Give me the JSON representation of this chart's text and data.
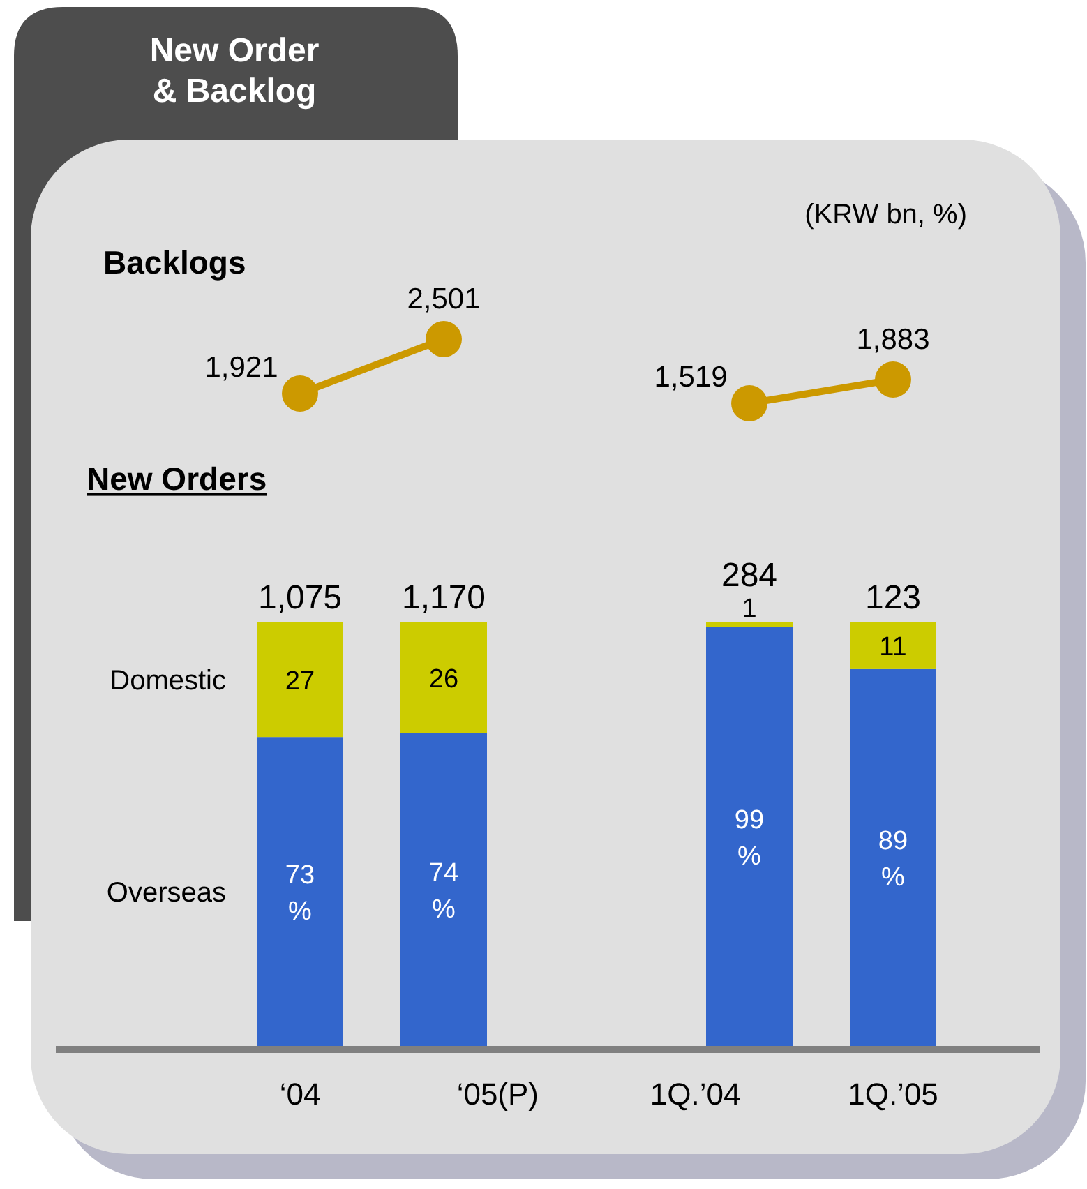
{
  "chart_data": [
    {
      "type": "line",
      "title": "New Order & Backlog",
      "annotations": [
        "Backlogs"
      ],
      "categories": [
        null,
        null
      ],
      "tick_labels": false,
      "marker": "circle",
      "series": [
        {
          "color": "#cc9900",
          "values": [
            1921,
            2501
          ],
          "value_labels": [
            "1,921",
            "2,501"
          ]
        }
      ]
    },
    {
      "type": "line",
      "subtitle": "(KRW bn, %)",
      "categories": [
        null,
        null
      ],
      "tick_labels": false,
      "marker": "circle",
      "series": [
        {
          "color": "#cc9900",
          "values": [
            1519,
            1883
          ],
          "value_labels": [
            "1,519",
            "1,883"
          ]
        }
      ]
    },
    {
      "type": "bar",
      "stacked": true,
      "categories": [
        "‘04",
        "‘05(P)",
        "1Q.’04",
        "1Q.’05"
      ],
      "tick_labels": "x",
      "ylim": [
        0,
        100
      ],
      "annotations": [
        "New Orders",
        "1,075",
        "1,170",
        "284",
        "123"
      ],
      "series": [
        {
          "name": "Overseas",
          "color": "#3366cc",
          "values": [
            73,
            74,
            99,
            89
          ],
          "value_labels": [
            "73 %",
            "74 %",
            "99 %",
            "89 %"
          ]
        },
        {
          "name": "Domestic",
          "color": "#cccc00",
          "values": [
            27,
            26,
            1,
            11
          ],
          "value_labels": [
            "27",
            "26",
            "1",
            "11"
          ]
        }
      ]
    }
  ]
}
